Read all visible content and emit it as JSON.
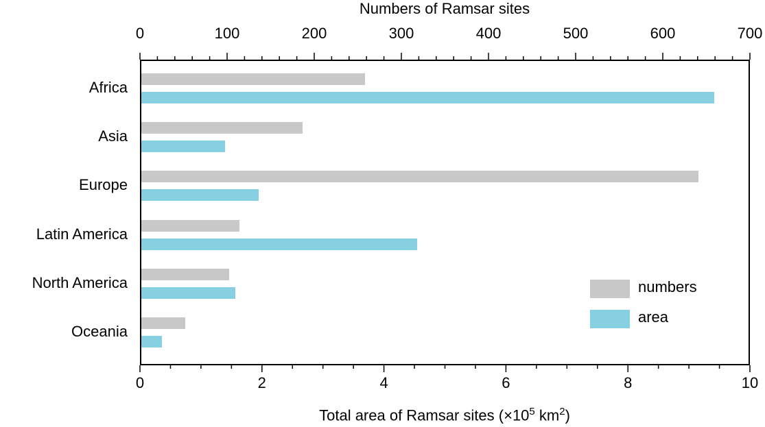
{
  "chart_data": {
    "type": "bar",
    "orientation": "horizontal",
    "categories": [
      "Africa",
      "Asia",
      "Europe",
      "Latin America",
      "North America",
      "Oceania"
    ],
    "series": [
      {
        "name": "numbers",
        "axis": "top",
        "color": "#c8c8c8",
        "values": [
          258,
          187,
          641,
          114,
          102,
          52
        ]
      },
      {
        "name": "area",
        "axis": "bottom",
        "color": "#87d0e2",
        "values": [
          9.41,
          1.39,
          1.95,
          4.55,
          1.56,
          0.36
        ]
      }
    ],
    "top_axis": {
      "label": "Numbers of Ramsar sites",
      "range": [
        0,
        700
      ],
      "ticks": [
        "0",
        "100",
        "200",
        "300",
        "400",
        "500",
        "600",
        "700"
      ]
    },
    "bottom_axis": {
      "label_main": "Total area of Ramsar sites (×10",
      "label_sup1": "5",
      "label_mid": " km",
      "label_sup2": "2",
      "label_end": ")",
      "range": [
        0,
        10
      ],
      "ticks": [
        "0",
        "2",
        "4",
        "6",
        "8",
        "10"
      ]
    },
    "legend": {
      "position": "lower right",
      "items": [
        {
          "label": "numbers",
          "color": "#c8c8c8"
        },
        {
          "label": "area",
          "color": "#87d0e2"
        }
      ]
    },
    "grid": false
  }
}
